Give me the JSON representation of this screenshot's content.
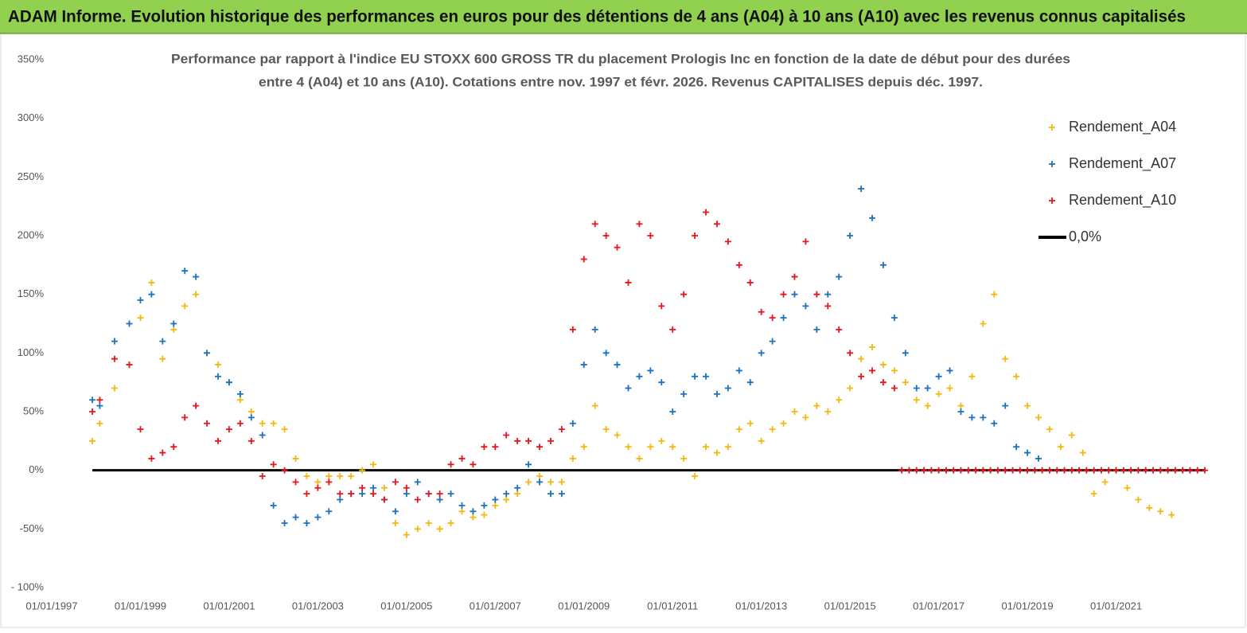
{
  "header": {
    "title": "ADAM Informe. Evolution historique des performances en euros pour des détentions de 4 ans (A04) à 10 ans (A10) avec les revenus connus capitalisés"
  },
  "chart_data": {
    "type": "scatter",
    "subtitle": [
      "Performance par rapport à l'indice EU STOXX 600 GROSS TR  du placement Prologis Inc en fonction de la date de début pour des durées",
      "entre 4 (A04) et 10 ans (A10).  Cotations entre nov. 1997 et févr. 2026. Revenus CAPITALISES depuis déc. 1997."
    ],
    "xlim": [
      "1997-01-01",
      "2023-01-01"
    ],
    "xticks": [
      {
        "value": "1997-01-01",
        "label": "01/01/1997"
      },
      {
        "value": "1999-01-01",
        "label": "01/01/1999"
      },
      {
        "value": "2001-01-01",
        "label": "01/01/2001"
      },
      {
        "value": "2003-01-01",
        "label": "01/01/2003"
      },
      {
        "value": "2005-01-01",
        "label": "01/01/2005"
      },
      {
        "value": "2007-01-01",
        "label": "01/01/2007"
      },
      {
        "value": "2009-01-01",
        "label": "01/01/2009"
      },
      {
        "value": "2011-01-01",
        "label": "01/01/2011"
      },
      {
        "value": "2013-01-01",
        "label": "01/01/2013"
      },
      {
        "value": "2015-01-01",
        "label": "01/01/2015"
      },
      {
        "value": "2017-01-01",
        "label": "01/01/2017"
      },
      {
        "value": "2019-01-01",
        "label": "01/01/2019"
      },
      {
        "value": "2021-01-01",
        "label": "01/01/2021"
      }
    ],
    "ylim": [
      -100,
      350
    ],
    "yticks": [
      {
        "value": -100,
        "label": "- 100%"
      },
      {
        "value": -50,
        "label": "-50%"
      },
      {
        "value": 0,
        "label": "0%"
      },
      {
        "value": 50,
        "label": "50%"
      },
      {
        "value": 100,
        "label": "100%"
      },
      {
        "value": 150,
        "label": "150%"
      },
      {
        "value": 200,
        "label": "200%"
      },
      {
        "value": 250,
        "label": "250%"
      },
      {
        "value": 300,
        "label": "300%"
      },
      {
        "value": 350,
        "label": "350%"
      }
    ],
    "grid": false,
    "legend": "upper right",
    "series": [
      {
        "name": "0,0%",
        "color": "#000000",
        "mode": "line",
        "x": [
          "1997-12-01",
          "2023-01-01"
        ],
        "values": [
          0,
          0
        ]
      },
      {
        "name": "Rendement_A04",
        "color": "#f4b811",
        "mode": "markers",
        "x": [
          "1997-12-01",
          "1998-02-01",
          "1998-06-01",
          "1998-10-01",
          "1999-01-01",
          "1999-04-01",
          "1999-07-01",
          "1999-10-01",
          "2000-01-01",
          "2000-04-01",
          "2000-07-01",
          "2000-10-01",
          "2001-01-01",
          "2001-04-01",
          "2001-07-01",
          "2001-10-01",
          "2002-01-01",
          "2002-04-01",
          "2002-07-01",
          "2002-10-01",
          "2003-01-01",
          "2003-04-01",
          "2003-07-01",
          "2003-10-01",
          "2004-01-01",
          "2004-04-01",
          "2004-07-01",
          "2004-10-01",
          "2005-01-01",
          "2005-04-01",
          "2005-07-01",
          "2005-10-01",
          "2006-01-01",
          "2006-04-01",
          "2006-07-01",
          "2006-10-01",
          "2007-01-01",
          "2007-04-01",
          "2007-07-01",
          "2007-10-01",
          "2008-01-01",
          "2008-04-01",
          "2008-07-01",
          "2008-10-01",
          "2009-01-01",
          "2009-04-01",
          "2009-07-01",
          "2009-10-01",
          "2010-01-01",
          "2010-04-01",
          "2010-07-01",
          "2010-10-01",
          "2011-01-01",
          "2011-04-01",
          "2011-07-01",
          "2011-10-01",
          "2012-01-01",
          "2012-04-01",
          "2012-07-01",
          "2012-10-01",
          "2013-01-01",
          "2013-04-01",
          "2013-07-01",
          "2013-10-01",
          "2014-01-01",
          "2014-04-01",
          "2014-07-01",
          "2014-10-01",
          "2015-01-01",
          "2015-04-01",
          "2015-07-01",
          "2015-10-01",
          "2016-01-01",
          "2016-04-01",
          "2016-07-01",
          "2016-10-01",
          "2017-01-01",
          "2017-04-01",
          "2017-07-01",
          "2017-10-01",
          "2018-01-01",
          "2018-04-01",
          "2018-07-01",
          "2018-10-01",
          "2019-01-01",
          "2019-04-01",
          "2019-07-01",
          "2019-10-01",
          "2020-01-01",
          "2020-04-01",
          "2020-07-01",
          "2020-10-01",
          "2021-01-01",
          "2021-04-01",
          "2021-07-01",
          "2021-10-01",
          "2022-01-01",
          "2022-04-01"
        ],
        "values": [
          25,
          40,
          70,
          90,
          130,
          160,
          95,
          120,
          140,
          150,
          100,
          90,
          75,
          60,
          50,
          40,
          40,
          35,
          10,
          -5,
          -10,
          -5,
          -5,
          -5,
          0,
          5,
          -15,
          -45,
          -55,
          -50,
          -45,
          -50,
          -45,
          -35,
          -40,
          -38,
          -30,
          -25,
          -20,
          -10,
          -5,
          -10,
          -10,
          10,
          20,
          55,
          35,
          30,
          20,
          10,
          20,
          25,
          20,
          10,
          -5,
          20,
          15,
          20,
          35,
          40,
          25,
          35,
          40,
          50,
          45,
          55,
          50,
          60,
          70,
          95,
          105,
          90,
          85,
          75,
          60,
          55,
          65,
          70,
          55,
          80,
          125,
          150,
          95,
          80,
          55,
          45,
          35,
          20,
          30,
          15,
          -20,
          -10,
          0,
          -15,
          -25,
          -32,
          -35,
          -38
        ]
      },
      {
        "name": "Rendement_A07",
        "color": "#1b72be",
        "mode": "markers",
        "x": [
          "1997-12-01",
          "1998-02-01",
          "1998-06-01",
          "1998-10-01",
          "1999-01-01",
          "1999-04-01",
          "1999-07-01",
          "1999-10-01",
          "2000-01-01",
          "2000-04-01",
          "2000-07-01",
          "2000-10-01",
          "2001-01-01",
          "2001-04-01",
          "2001-07-01",
          "2001-10-01",
          "2002-01-01",
          "2002-04-01",
          "2002-07-01",
          "2002-10-01",
          "2003-01-01",
          "2003-04-01",
          "2003-07-01",
          "2003-10-01",
          "2004-01-01",
          "2004-04-01",
          "2004-07-01",
          "2004-10-01",
          "2005-01-01",
          "2005-04-01",
          "2005-07-01",
          "2005-10-01",
          "2006-01-01",
          "2006-04-01",
          "2006-07-01",
          "2006-10-01",
          "2007-01-01",
          "2007-04-01",
          "2007-07-01",
          "2007-10-01",
          "2008-01-01",
          "2008-04-01",
          "2008-07-01",
          "2008-10-01",
          "2009-01-01",
          "2009-04-01",
          "2009-07-01",
          "2009-10-01",
          "2010-01-01",
          "2010-04-01",
          "2010-07-01",
          "2010-10-01",
          "2011-01-01",
          "2011-04-01",
          "2011-07-01",
          "2011-10-01",
          "2012-01-01",
          "2012-04-01",
          "2012-07-01",
          "2012-10-01",
          "2013-01-01",
          "2013-04-01",
          "2013-07-01",
          "2013-10-01",
          "2014-01-01",
          "2014-04-01",
          "2014-07-01",
          "2014-10-01",
          "2015-01-01",
          "2015-04-01",
          "2015-07-01",
          "2015-10-01",
          "2016-01-01",
          "2016-04-01",
          "2016-07-01",
          "2016-10-01",
          "2017-01-01",
          "2017-04-01",
          "2017-07-01",
          "2017-10-01",
          "2018-01-01",
          "2018-04-01",
          "2018-07-01",
          "2018-10-01",
          "2019-01-01",
          "2019-04-01"
        ],
        "values": [
          60,
          55,
          110,
          125,
          145,
          150,
          110,
          125,
          170,
          165,
          100,
          80,
          75,
          65,
          45,
          30,
          -30,
          -45,
          -40,
          -45,
          -40,
          -35,
          -25,
          -20,
          -20,
          -15,
          -25,
          -35,
          -20,
          -10,
          -20,
          -25,
          -20,
          -30,
          -35,
          -30,
          -25,
          -20,
          -15,
          5,
          -10,
          -20,
          -20,
          40,
          90,
          120,
          100,
          90,
          70,
          80,
          85,
          75,
          50,
          65,
          80,
          80,
          65,
          70,
          85,
          75,
          100,
          110,
          130,
          150,
          140,
          120,
          150,
          165,
          200,
          240,
          215,
          175,
          130,
          100,
          70,
          70,
          80,
          85,
          50,
          45,
          45,
          40,
          55,
          20,
          15,
          10
        ]
      },
      {
        "name": "Rendement_A10",
        "color": "#e8151d",
        "mode": "markers",
        "x": [
          "1997-12-01",
          "1998-02-01",
          "1998-06-01",
          "1998-10-01",
          "1999-01-01",
          "1999-04-01",
          "1999-07-01",
          "1999-10-01",
          "2000-01-01",
          "2000-04-01",
          "2000-07-01",
          "2000-10-01",
          "2001-01-01",
          "2001-04-01",
          "2001-07-01",
          "2001-10-01",
          "2002-01-01",
          "2002-04-01",
          "2002-07-01",
          "2002-10-01",
          "2003-01-01",
          "2003-04-01",
          "2003-07-01",
          "2003-10-01",
          "2004-01-01",
          "2004-04-01",
          "2004-07-01",
          "2004-10-01",
          "2005-01-01",
          "2005-04-01",
          "2005-07-01",
          "2005-10-01",
          "2006-01-01",
          "2006-04-01",
          "2006-07-01",
          "2006-10-01",
          "2007-01-01",
          "2007-04-01",
          "2007-07-01",
          "2007-10-01",
          "2008-01-01",
          "2008-04-01",
          "2008-07-01",
          "2008-10-01",
          "2009-01-01",
          "2009-04-01",
          "2009-07-01",
          "2009-10-01",
          "2010-01-01",
          "2010-04-01",
          "2010-07-01",
          "2010-10-01",
          "2011-01-01",
          "2011-04-01",
          "2011-07-01",
          "2011-10-01",
          "2012-01-01",
          "2012-04-01",
          "2012-07-01",
          "2012-10-01",
          "2013-01-01",
          "2013-04-01",
          "2013-07-01",
          "2013-10-01",
          "2014-01-01",
          "2014-04-01",
          "2014-07-01",
          "2014-10-01",
          "2015-01-01",
          "2015-04-01",
          "2015-07-01",
          "2015-10-01",
          "2016-01-01",
          "2016-03-01",
          "2016-05-01",
          "2016-07-01",
          "2016-09-01",
          "2016-11-01",
          "2017-01-01",
          "2017-03-01",
          "2017-05-01",
          "2017-07-01",
          "2017-09-01",
          "2017-11-01",
          "2018-01-01",
          "2018-03-01",
          "2018-05-01",
          "2018-07-01",
          "2018-09-01",
          "2018-11-01",
          "2019-01-01",
          "2019-03-01",
          "2019-05-01",
          "2019-07-01",
          "2019-09-01",
          "2019-11-01",
          "2020-01-01",
          "2020-03-01",
          "2020-05-01",
          "2020-07-01",
          "2020-09-01",
          "2020-11-01",
          "2021-01-01",
          "2021-03-01",
          "2021-05-01",
          "2021-07-01",
          "2021-09-01",
          "2021-11-01",
          "2022-01-01",
          "2022-03-01",
          "2022-05-01",
          "2022-07-01",
          "2022-09-01",
          "2022-11-01",
          "2023-01-01"
        ],
        "values": [
          50,
          60,
          95,
          90,
          35,
          10,
          15,
          20,
          45,
          55,
          40,
          25,
          35,
          40,
          25,
          -5,
          5,
          0,
          -10,
          -20,
          -15,
          -10,
          -20,
          -20,
          -15,
          -20,
          -25,
          -10,
          -15,
          -25,
          -20,
          -20,
          5,
          10,
          5,
          20,
          20,
          30,
          25,
          25,
          20,
          25,
          35,
          120,
          180,
          210,
          200,
          190,
          160,
          210,
          200,
          140,
          120,
          150,
          200,
          220,
          210,
          195,
          175,
          160,
          135,
          130,
          150,
          165,
          195,
          150,
          140,
          120,
          100,
          80,
          85,
          75,
          70,
          0,
          0,
          0,
          0,
          0,
          0,
          0,
          0,
          0,
          0,
          0,
          0,
          0,
          0,
          0,
          0,
          0,
          0,
          0,
          0,
          0,
          0,
          0,
          0,
          0,
          0,
          0,
          0,
          0,
          0,
          0,
          0,
          0,
          0,
          0,
          0,
          0,
          0,
          0,
          0,
          0,
          0
        ]
      }
    ]
  }
}
